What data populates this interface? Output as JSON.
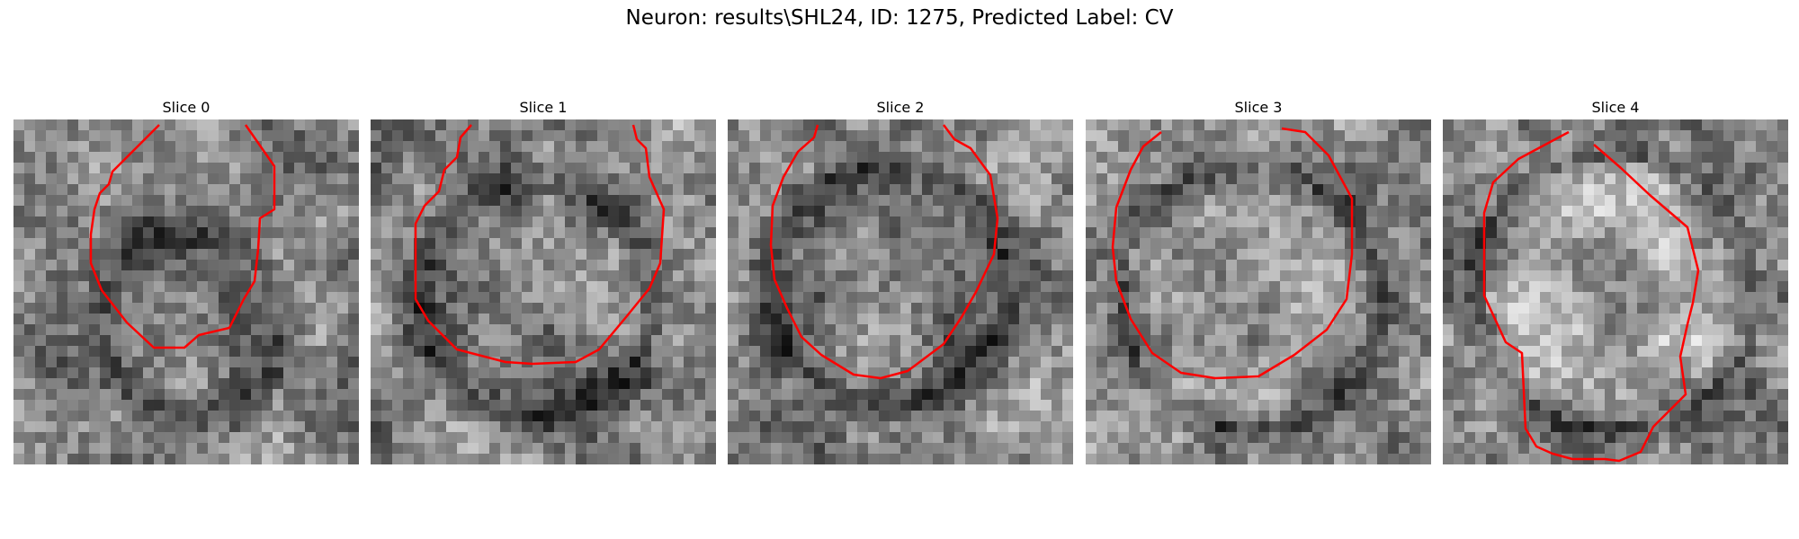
{
  "figure": {
    "title": "Neuron: results\\SHL24, ID: 1275, Predicted Label: CV"
  },
  "colors": {
    "contour": "#ff0000"
  },
  "slices": [
    {
      "title": "Slice 0"
    },
    {
      "title": "Slice 1"
    },
    {
      "title": "Slice 2"
    },
    {
      "title": "Slice 3"
    },
    {
      "title": "Slice 4"
    }
  ]
}
